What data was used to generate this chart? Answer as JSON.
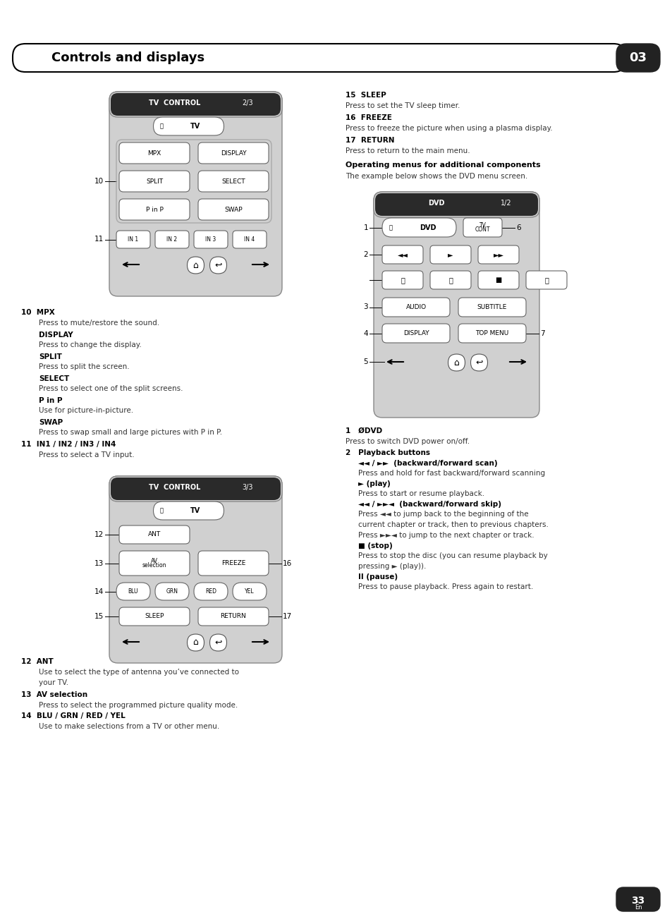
{
  "page_bg": "#ffffff",
  "header_text": "Controls and displays",
  "header_num": "03",
  "page_num": "33",
  "page_num_sub": "En"
}
